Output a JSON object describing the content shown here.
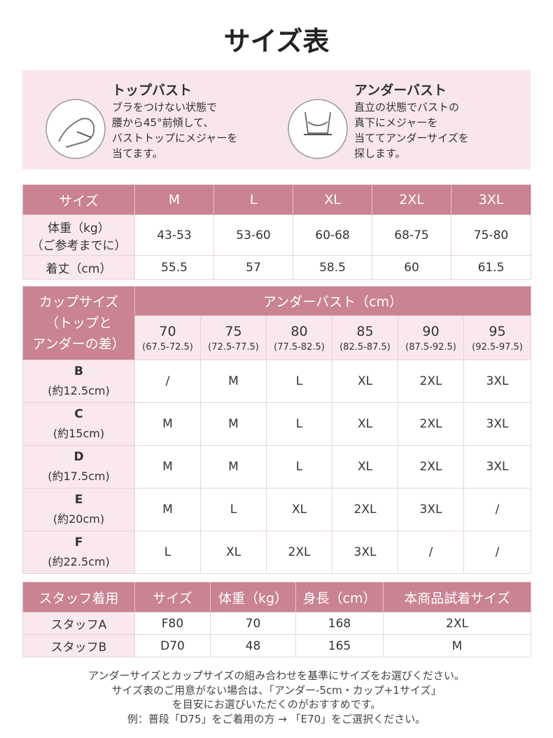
{
  "title": "サイズ表",
  "measure": [
    {
      "title": "トップバスト",
      "lines": [
        "ブラをつけない状態で",
        "腰から45°前傾して、",
        "バストトップにメジャーを",
        "当てます。"
      ]
    },
    {
      "title": "アンダーバスト",
      "lines": [
        "直立の状態でバストの",
        "真下にメジャーを",
        "当ててアンダーサイズを",
        "探します。"
      ]
    }
  ],
  "size_table": {
    "header": [
      "サイズ",
      "M",
      "L",
      "XL",
      "2XL",
      "3XL"
    ],
    "rows": [
      {
        "label": [
          "体重（kg）",
          "（ご参考までに）"
        ],
        "cells": [
          "43-53",
          "53-60",
          "60-68",
          "68-75",
          "75-80"
        ]
      },
      {
        "label": [
          "着丈（cm）"
        ],
        "cells": [
          "55.5",
          "57",
          "58.5",
          "60",
          "61.5"
        ]
      }
    ]
  },
  "cup_table": {
    "corner": [
      "カップサイズ",
      "（トップと",
      "アンダーの差）"
    ],
    "header": "アンダーバスト（cm）",
    "columns": [
      {
        "size": "70",
        "range": "(67.5-72.5)"
      },
      {
        "size": "75",
        "range": "(72.5-77.5)"
      },
      {
        "size": "80",
        "range": "(77.5-82.5)"
      },
      {
        "size": "85",
        "range": "(82.5-87.5)"
      },
      {
        "size": "90",
        "range": "(87.5-92.5)"
      },
      {
        "size": "95",
        "range": "(92.5-97.5)"
      }
    ],
    "rows": [
      {
        "cup": "B",
        "diff": "(約12.5cm)",
        "cells": [
          "/",
          "M",
          "L",
          "XL",
          "2XL",
          "3XL"
        ]
      },
      {
        "cup": "C",
        "diff": "(約15cm)",
        "cells": [
          "M",
          "M",
          "L",
          "XL",
          "2XL",
          "3XL"
        ]
      },
      {
        "cup": "D",
        "diff": "(約17.5cm)",
        "cells": [
          "M",
          "M",
          "L",
          "XL",
          "2XL",
          "3XL"
        ]
      },
      {
        "cup": "E",
        "diff": "(約20cm)",
        "cells": [
          "M",
          "L",
          "XL",
          "2XL",
          "3XL",
          "/"
        ]
      },
      {
        "cup": "F",
        "diff": "(約22.5cm)",
        "cells": [
          "L",
          "XL",
          "2XL",
          "3XL",
          "/",
          "/"
        ]
      }
    ]
  },
  "staff_table": {
    "header": [
      "スタッフ着用",
      "サイズ",
      "体重（kg）",
      "身長（cm）",
      "本商品試着サイズ"
    ],
    "rows": [
      [
        "スタッフA",
        "F80",
        "70",
        "168",
        "2XL"
      ],
      [
        "スタッフB",
        "D70",
        "48",
        "165",
        "M"
      ]
    ]
  },
  "notes": [
    "アンダーサイズとカップサイズの組み合わせを基準にサイズをお選びください。",
    "サイズ表のご用意がない場合は、「アンダー-5cm・カップ+1サイズ」",
    "を目安にお選びいただくのがおすすめです。",
    "例：普段「D75」をご着用の方 → 「E70」をご選択ください。"
  ]
}
